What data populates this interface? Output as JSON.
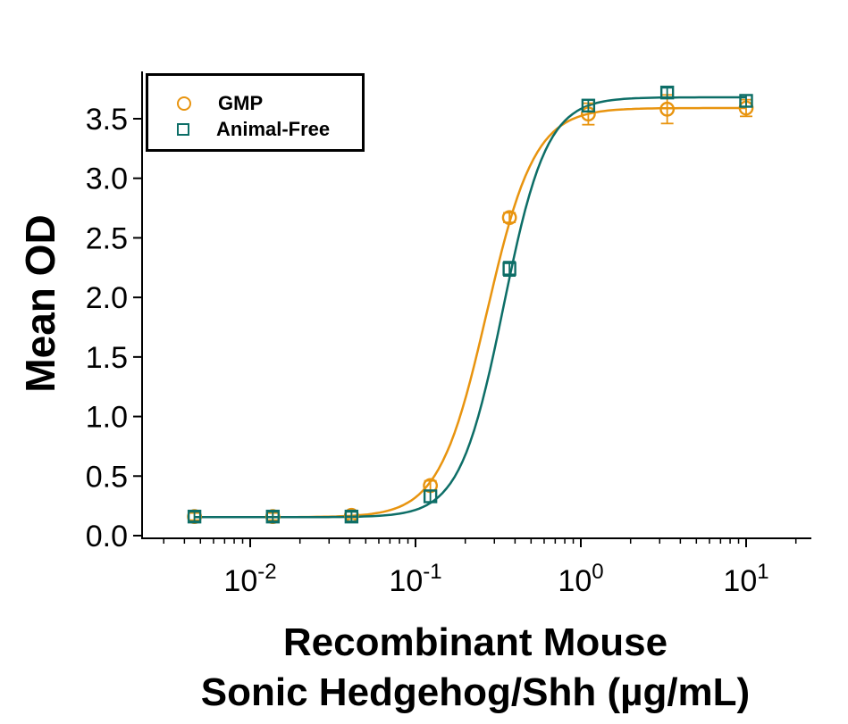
{
  "chart_data": {
    "type": "line",
    "title": "",
    "xlabel_lines": [
      "Recombinant Mouse",
      "Sonic Hedgehog/Shh (µg/mL)"
    ],
    "ylabel": "Mean OD",
    "x_axis": {
      "scale": "log",
      "min": 0.0022,
      "max": 24,
      "major_ticks": [
        0.01,
        0.1,
        1,
        10
      ],
      "tick_labels": [
        {
          "base": "10",
          "exp": "-2"
        },
        {
          "base": "10",
          "exp": "-1"
        },
        {
          "base": "10",
          "exp": "0"
        },
        {
          "base": "10",
          "exp": "1"
        }
      ]
    },
    "y_axis": {
      "min": -0.02,
      "max": 3.9,
      "major_ticks": [
        0,
        0.5,
        1,
        1.5,
        2,
        2.5,
        3,
        3.5
      ],
      "tick_labels": [
        "0.0",
        "0.5",
        "1.0",
        "1.5",
        "2.0",
        "2.5",
        "3.0",
        "3.5"
      ]
    },
    "x": [
      0.0046,
      0.0137,
      0.041,
      0.123,
      0.37,
      1.11,
      3.33,
      10
    ],
    "series": [
      {
        "name": "GMP",
        "marker": "circle",
        "color": "#E8940F",
        "y": [
          0.16,
          0.16,
          0.17,
          0.42,
          2.67,
          3.54,
          3.58,
          3.59
        ],
        "err": [
          0.03,
          0.03,
          0.03,
          0.04,
          0.04,
          0.09,
          0.12,
          0.07
        ],
        "fit": {
          "bottom": 0.155,
          "top": 3.59,
          "ec50": 0.27,
          "hill": 3.0
        }
      },
      {
        "name": "Animal-Free",
        "marker": "square",
        "color": "#0D6E67",
        "y": [
          0.16,
          0.16,
          0.16,
          0.33,
          2.24,
          3.61,
          3.72,
          3.65
        ],
        "err": [
          0.04,
          0.04,
          0.04,
          0.05,
          0.06,
          0.05,
          0.04,
          0.05
        ],
        "fit": {
          "bottom": 0.155,
          "top": 3.68,
          "ec50": 0.34,
          "hill": 3.3
        }
      }
    ],
    "legend": {
      "position": "top-left",
      "items": [
        "GMP",
        "Animal-Free"
      ]
    },
    "grid": false,
    "axis_color": "#000000",
    "background_color": "#FFFFFF"
  }
}
